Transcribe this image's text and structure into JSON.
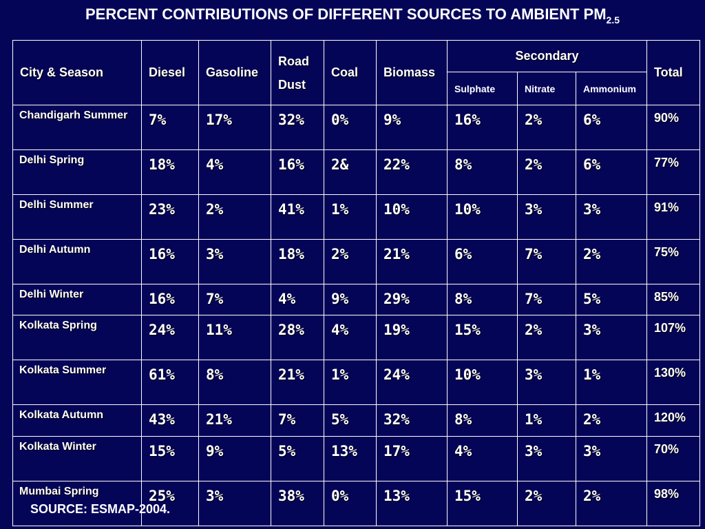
{
  "title": {
    "main": "PERCENT CONTRIBUTIONS OF DIFFERENT SOURCES TO AMBIENT PM",
    "subscript": "2.5"
  },
  "headers": {
    "city_season": "City & Season",
    "diesel": "Diesel",
    "gasoline": "Gasoline",
    "road_dust_line1": "Road",
    "road_dust_line2": "Dust",
    "coal": "Coal",
    "biomass": "Biomass",
    "secondary": "Secondary",
    "sulphate": "Sulphate",
    "nitrate": "Nitrate",
    "ammonium": "Ammonium",
    "total": "Total"
  },
  "rows": [
    {
      "city": "Chandigarh Summer",
      "diesel": "7%",
      "gasoline": "17%",
      "road_dust": "32%",
      "coal": "0%",
      "biomass": "9%",
      "sulphate": "16%",
      "nitrate": "2%",
      "ammonium": "6%",
      "total": "90%"
    },
    {
      "city": "Delhi Spring",
      "diesel": "18%",
      "gasoline": "4%",
      "road_dust": "16%",
      "coal": "2&",
      "biomass": "22%",
      "sulphate": "8%",
      "nitrate": "2%",
      "ammonium": "6%",
      "total": "77%"
    },
    {
      "city": "Delhi Summer",
      "diesel": "23%",
      "gasoline": "2%",
      "road_dust": "41%",
      "coal": "1%",
      "biomass": "10%",
      "sulphate": "10%",
      "nitrate": "3%",
      "ammonium": "3%",
      "total": "91%"
    },
    {
      "city": "Delhi Autumn",
      "diesel": "16%",
      "gasoline": "3%",
      "road_dust": "18%",
      "coal": "2%",
      "biomass": "21%",
      "sulphate": "6%",
      "nitrate": "7%",
      "ammonium": "2%",
      "total": "75%"
    },
    {
      "city": "Delhi Winter",
      "diesel": "16%",
      "gasoline": "7%",
      "road_dust": "4%",
      "coal": "9%",
      "biomass": "29%",
      "sulphate": "8%",
      "nitrate": "7%",
      "ammonium": "5%",
      "total": "85%"
    },
    {
      "city": "Kolkata Spring",
      "diesel": "24%",
      "gasoline": "11%",
      "road_dust": "28%",
      "coal": "4%",
      "biomass": "19%",
      "sulphate": "15%",
      "nitrate": "2%",
      "ammonium": "3%",
      "total": "107%"
    },
    {
      "city": "Kolkata Summer",
      "diesel": "61%",
      "gasoline": "8%",
      "road_dust": "21%",
      "coal": "1%",
      "biomass": "24%",
      "sulphate": "10%",
      "nitrate": "3%",
      "ammonium": "1%",
      "total": "130%"
    },
    {
      "city": "Kolkata Autumn",
      "diesel": "43%",
      "gasoline": "21%",
      "road_dust": "7%",
      "coal": "5%",
      "biomass": "32%",
      "sulphate": "8%",
      "nitrate": "1%",
      "ammonium": "2%",
      "total": "120%"
    },
    {
      "city": "Kolkata Winter",
      "diesel": "15%",
      "gasoline": "9%",
      "road_dust": "5%",
      "coal": "13%",
      "biomass": "17%",
      "sulphate": "4%",
      "nitrate": "3%",
      "ammonium": "3%",
      "total": "70%"
    },
    {
      "city": "Mumbai Spring",
      "diesel": "25%",
      "gasoline": "3%",
      "road_dust": "38%",
      "coal": "0%",
      "biomass": "13%",
      "sulphate": "15%",
      "nitrate": "2%",
      "ammonium": "2%",
      "total": "98%"
    }
  ],
  "source": "SOURCE: ESMAP-2004."
}
